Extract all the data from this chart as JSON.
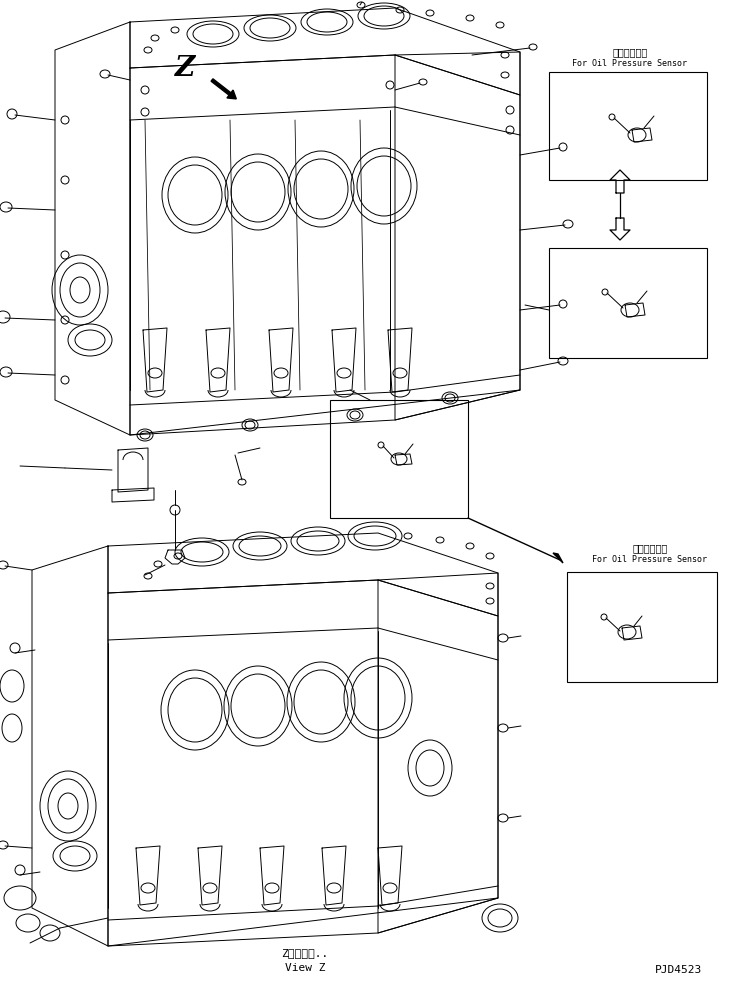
{
  "bg_color": "#ffffff",
  "line_color": "#000000",
  "fig_width": 7.34,
  "fig_height": 9.86,
  "dpi": 100,
  "label1_jp": "油圧センサ用",
  "label1_en": "For Oil Pressure Sensor",
  "label2_jp": "油圧センサ用",
  "label2_en": "For Oil Pressure Sensor",
  "view_z_jp": "Z　視　　..",
  "view_z_en": "View Z",
  "part_no": "PJD4523",
  "z_label": "Z"
}
